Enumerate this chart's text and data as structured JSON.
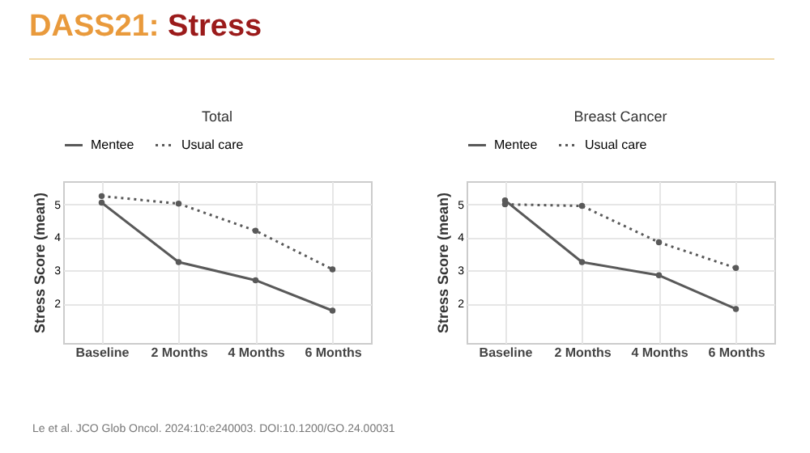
{
  "chart_data": [
    {
      "type": "line",
      "title": "Total",
      "ylabel": "Stress Score (mean)",
      "categories": [
        "Baseline",
        "2 Months",
        "4 Months",
        "6 Months"
      ],
      "ylim": [
        0.8,
        5.7
      ],
      "yticks": [
        2,
        3,
        4,
        5
      ],
      "grid": true,
      "legend": "top",
      "marker": "circle",
      "annotations": [
        "DASS21: Stress",
        "Le et al. JCO Glob Oncol. 2024:10:e240003. DOI:10.1200/GO.24.00031"
      ],
      "series": [
        {
          "name": "Mentee",
          "color": "#595959",
          "line_style": "solid",
          "values": [
            5.05,
            3.25,
            2.7,
            1.78
          ]
        },
        {
          "name": "Usual care",
          "color": "#595959",
          "line_style": "dotted",
          "values": [
            5.25,
            5.02,
            4.2,
            3.03
          ]
        }
      ]
    },
    {
      "type": "line",
      "title": "Breast Cancer",
      "ylabel": "Stress Score (mean)",
      "categories": [
        "Baseline",
        "2 Months",
        "4 Months",
        "6 Months"
      ],
      "ylim": [
        0.8,
        5.7
      ],
      "yticks": [
        2,
        3,
        4,
        5
      ],
      "grid": true,
      "legend": "top",
      "marker": "circle",
      "series": [
        {
          "name": "Mentee",
          "color": "#595959",
          "line_style": "solid",
          "values": [
            5.12,
            3.25,
            2.85,
            1.83
          ]
        },
        {
          "name": "Usual care",
          "color": "#595959",
          "line_style": "dotted",
          "values": [
            5.0,
            4.95,
            3.85,
            3.07
          ]
        }
      ]
    }
  ]
}
